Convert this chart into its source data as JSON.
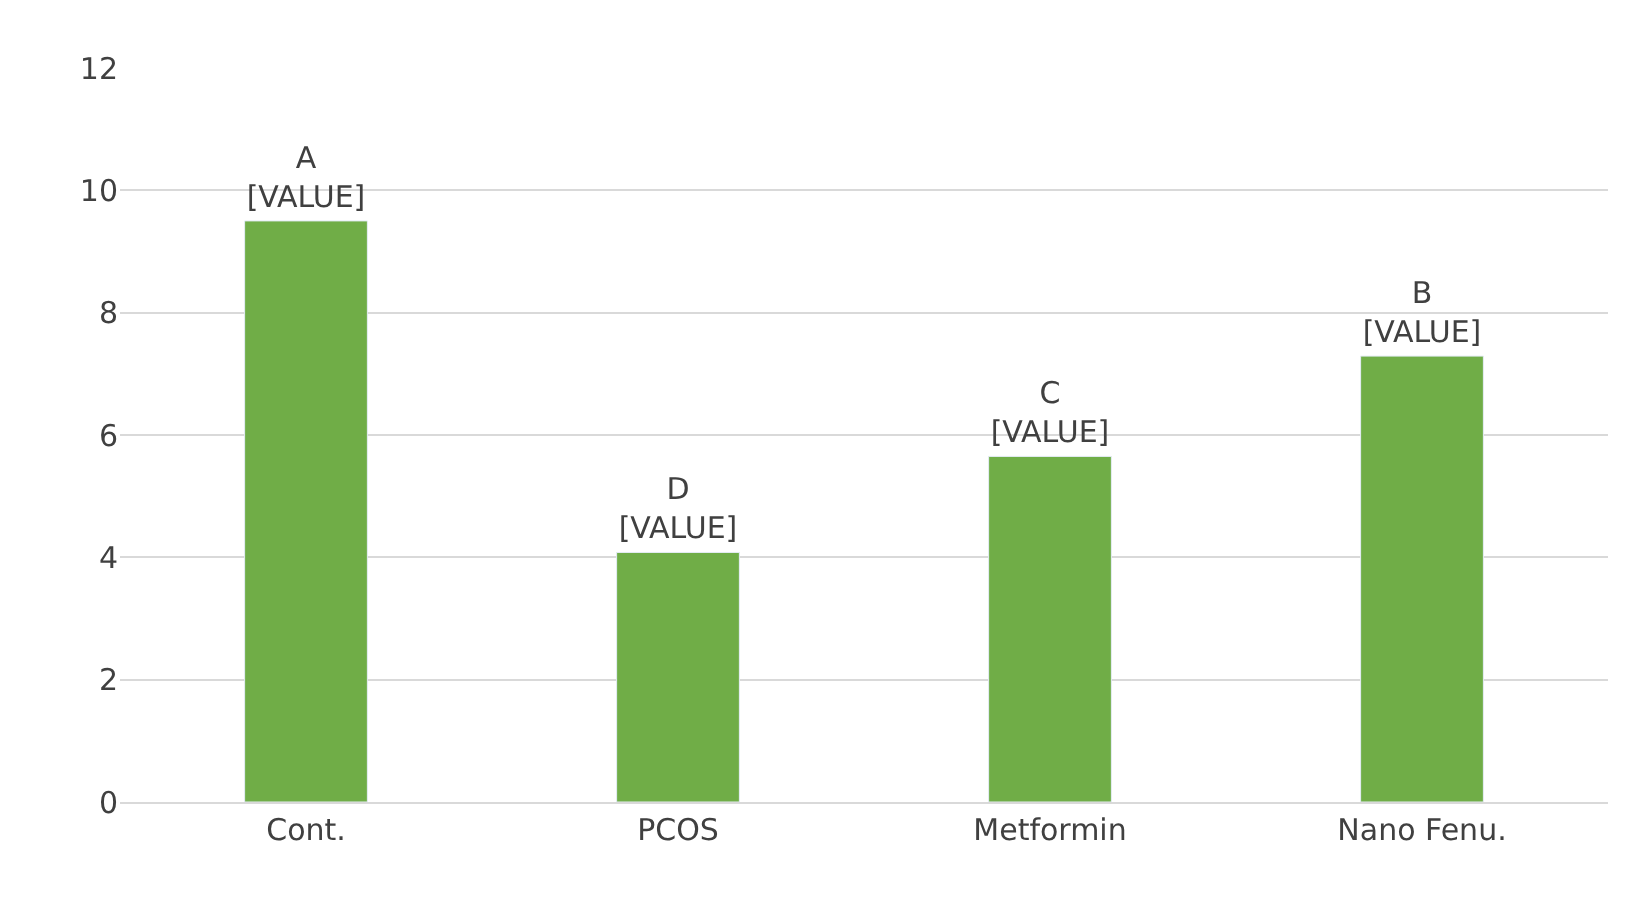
{
  "chart_data": {
    "type": "bar",
    "categories": [
      "Cont.",
      "PCOS",
      "Metformin",
      "Nano Fenu."
    ],
    "values": [
      9.5,
      4.08,
      5.65,
      7.29
    ],
    "value_labels": [
      "A\n[VALUE]",
      "D\n[VALUE]",
      "C\n[VALUE]",
      "B\n[VALUE]"
    ],
    "color": "#70ad47",
    "ylim": [
      0,
      12
    ],
    "yticks": [
      0,
      2,
      4,
      6,
      8,
      10,
      12
    ],
    "grid": "y",
    "legend": false
  }
}
